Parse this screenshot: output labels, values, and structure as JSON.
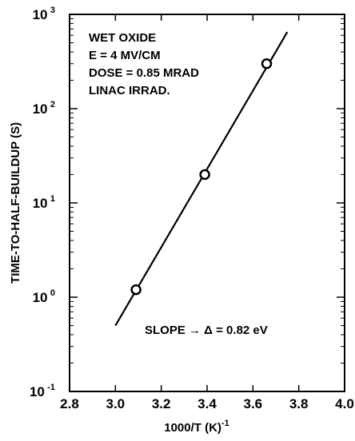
{
  "chart_data": {
    "type": "scatter",
    "title": "",
    "xlabel": "1000/T (K)",
    "xlabel_exponent": "-1",
    "ylabel": "TIME-TO-HALF-BUILDUP (S)",
    "xlim": [
      2.8,
      4.0
    ],
    "ylim": [
      0.1,
      1000
    ],
    "y_scale": "log",
    "grid": false,
    "x_ticks": [
      {
        "value": 2.8,
        "label": "2.8"
      },
      {
        "value": 3.0,
        "label": "3.0"
      },
      {
        "value": 3.2,
        "label": "3.2"
      },
      {
        "value": 3.4,
        "label": "3.4"
      },
      {
        "value": 3.6,
        "label": "3.6"
      },
      {
        "value": 3.8,
        "label": "3.8"
      },
      {
        "value": 4.0,
        "label": "4.0"
      }
    ],
    "y_ticks": [
      {
        "value": 0.1,
        "base": "10",
        "exp": "-1"
      },
      {
        "value": 1,
        "base": "10",
        "exp": "0"
      },
      {
        "value": 10,
        "base": "10",
        "exp": "1"
      },
      {
        "value": 100,
        "base": "10",
        "exp": "2"
      },
      {
        "value": 1000,
        "base": "10",
        "exp": "3"
      }
    ],
    "points": [
      {
        "x": 3.09,
        "y": 1.2
      },
      {
        "x": 3.39,
        "y": 20
      },
      {
        "x": 3.66,
        "y": 300
      }
    ],
    "fit_line": {
      "x": [
        3.0,
        3.75
      ],
      "y": [
        0.5,
        650
      ]
    },
    "annotations": [
      "WET OXIDE",
      "E = 4 MV/CM",
      "DOSE = 0.85 MRAD",
      "LINAC IRRAD."
    ],
    "slope_label": "SLOPE → Δ = 0.82 eV",
    "colors": {
      "ink": "#000000",
      "background": "#ffffff",
      "marker_fill": "#ffffff"
    }
  }
}
